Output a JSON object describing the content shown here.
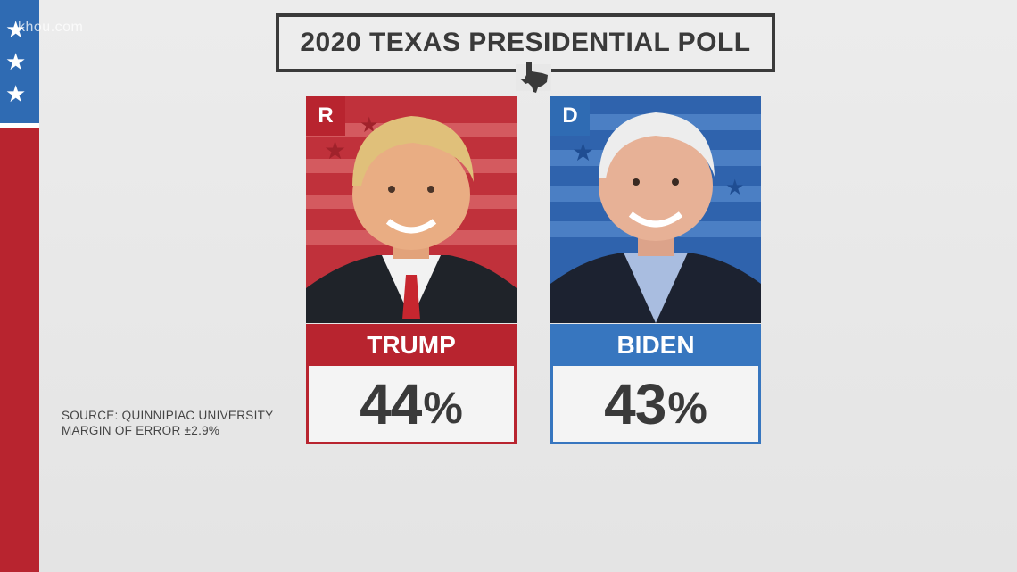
{
  "watermark": "khou.com",
  "title": "2020 TEXAS PRESIDENTIAL POLL",
  "candidates": [
    {
      "party": "R",
      "name": "TRUMP",
      "percent": "44",
      "percent_sign": "%",
      "color": "#b8242f"
    },
    {
      "party": "D",
      "name": "BIDEN",
      "percent": "43",
      "percent_sign": "%",
      "color": "#3776bf"
    }
  ],
  "source": {
    "line1": "SOURCE: QUINNIPIAC UNIVERSITY",
    "line2": "MARGIN OF ERROR ±2.9%"
  },
  "icons": [
    "star-icon",
    "texas-icon"
  ]
}
